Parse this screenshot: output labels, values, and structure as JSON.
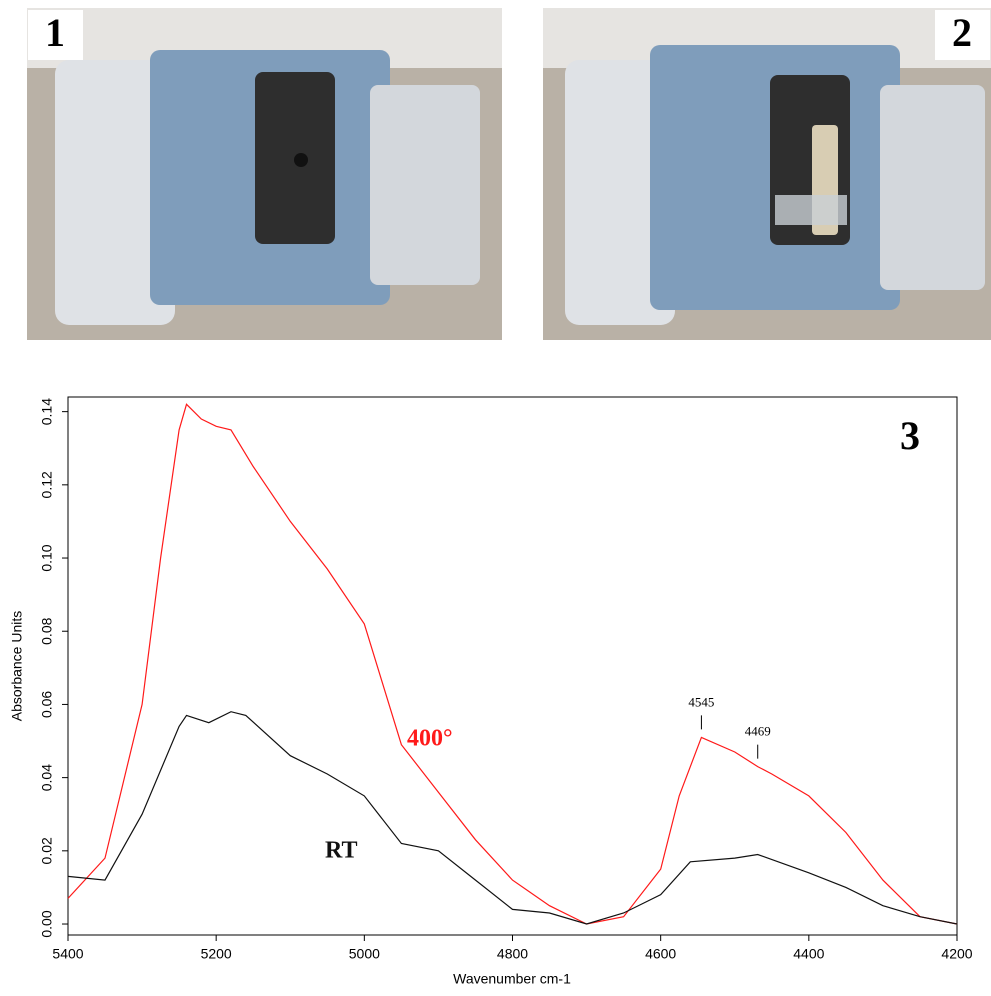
{
  "panels": [
    {
      "label": "1"
    },
    {
      "label": "2"
    }
  ],
  "chart_data": {
    "type": "line",
    "panel_label": "3",
    "x_label": "Wavenumber cm-1",
    "y_label": "Absorbance Units",
    "xlim": [
      5400,
      4200
    ],
    "xticks": [
      5400,
      5200,
      5000,
      4800,
      4600,
      4400,
      4200
    ],
    "ylim": [
      -0.003,
      0.144
    ],
    "yticks": [
      {
        "value": 0,
        "label": "0.00"
      },
      {
        "value": 0.02,
        "label": "0.02"
      },
      {
        "value": 0.04,
        "label": "0.04"
      },
      {
        "value": 0.06,
        "label": "0.06"
      },
      {
        "value": 0.08,
        "label": "0.08"
      },
      {
        "value": 0.1,
        "label": "0.10"
      },
      {
        "value": 0.12,
        "label": "0.12"
      },
      {
        "value": 0.14,
        "label": "0.14"
      }
    ],
    "grid": false,
    "series": [
      {
        "name": "400°",
        "color": "#ff1a1a",
        "x": [
          5400,
          5350,
          5300,
          5275,
          5250,
          5240,
          5220,
          5200,
          5180,
          5150,
          5100,
          5050,
          5000,
          4950,
          4900,
          4850,
          4800,
          4750,
          4700,
          4650,
          4600,
          4575,
          4545,
          4500,
          4469,
          4450,
          4400,
          4350,
          4300,
          4250,
          4200
        ],
        "values": [
          0.007,
          0.018,
          0.06,
          0.1,
          0.135,
          0.142,
          0.138,
          0.136,
          0.135,
          0.125,
          0.11,
          0.097,
          0.082,
          0.049,
          0.036,
          0.023,
          0.012,
          0.005,
          0.0,
          0.002,
          0.015,
          0.035,
          0.051,
          0.047,
          0.043,
          0.041,
          0.035,
          0.025,
          0.012,
          0.002,
          0.0
        ]
      },
      {
        "name": "RT",
        "color": "#111111",
        "x": [
          5400,
          5350,
          5300,
          5250,
          5240,
          5210,
          5180,
          5160,
          5100,
          5050,
          5000,
          4950,
          4900,
          4850,
          4800,
          4750,
          4700,
          4650,
          4600,
          4560,
          4500,
          4469,
          4400,
          4350,
          4300,
          4250,
          4200
        ],
        "values": [
          0.013,
          0.012,
          0.03,
          0.054,
          0.057,
          0.055,
          0.058,
          0.057,
          0.046,
          0.041,
          0.035,
          0.022,
          0.02,
          0.012,
          0.004,
          0.003,
          0.0,
          0.003,
          0.008,
          0.017,
          0.018,
          0.019,
          0.014,
          0.01,
          0.005,
          0.002,
          0.0
        ]
      }
    ],
    "peaks": [
      4545,
      4469
    ]
  }
}
